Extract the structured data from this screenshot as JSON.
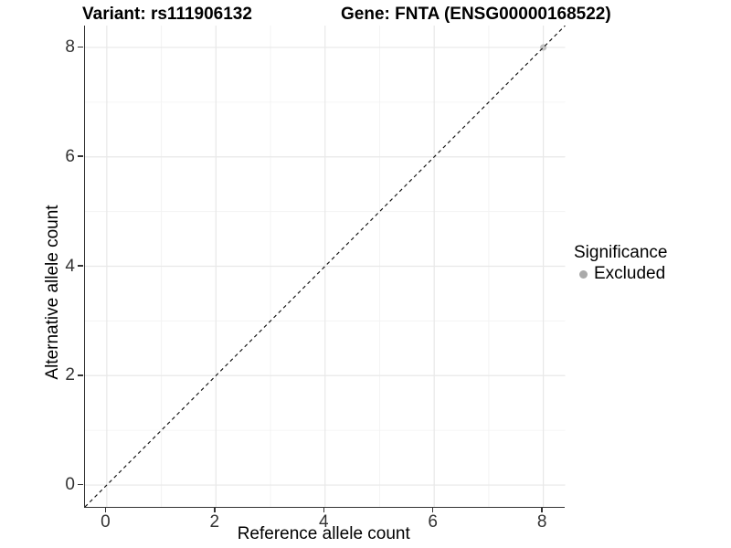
{
  "chart_data": {
    "type": "scatter",
    "title_left": "Variant: rs111906132",
    "title_right": "Gene: FNTA (ENSG00000168522)",
    "xlabel": "Reference allele count",
    "ylabel": "Alternative allele count",
    "xlim": [
      -0.4,
      8.4
    ],
    "ylim": [
      -0.4,
      8.4
    ],
    "x_major_ticks": [
      0,
      2,
      4,
      6,
      8
    ],
    "y_major_ticks": [
      0,
      2,
      4,
      6,
      8
    ],
    "x_minor_ticks": [
      1,
      3,
      5,
      7
    ],
    "y_minor_ticks": [
      1,
      3,
      5,
      7
    ],
    "x_tick_labels": [
      "0",
      "2",
      "4",
      "6",
      "8"
    ],
    "y_tick_labels": [
      "0",
      "2",
      "4",
      "6",
      "8"
    ],
    "grid": "on",
    "identity_line": {
      "type": "dashed",
      "color": "#111111",
      "x0": -0.4,
      "y0": -0.4,
      "x1": 8.4,
      "y1": 8.4
    },
    "points": [
      {
        "x": 8,
        "y": 8,
        "significance": "Excluded",
        "color": "#c2c2c2"
      }
    ],
    "legend": {
      "title": "Significance",
      "position": "right",
      "items": [
        {
          "label": "Excluded",
          "color": "#aaaaaa"
        }
      ]
    },
    "colors": {
      "excluded_point": "#c2c2c2",
      "legend_key": "#aaaaaa",
      "axis_text": "#333333",
      "major_grid": "#e8e8e8",
      "minor_grid": "#f3f3f3"
    }
  }
}
